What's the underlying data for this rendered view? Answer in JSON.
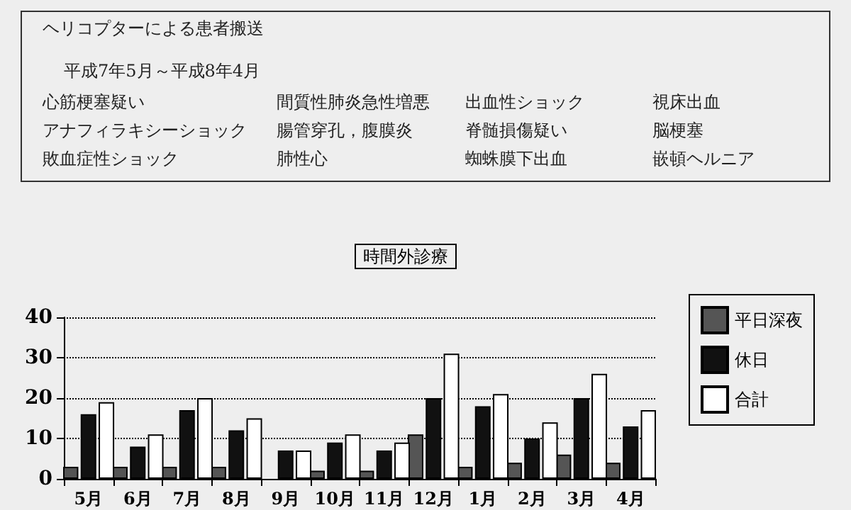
{
  "chart_data": {
    "type": "bar",
    "title": "時間外診療",
    "annotations": [
      "ヘリコプターによる患者搬送",
      "平成7年5月～平成8年4月",
      "心筋梗塞疑い",
      "間質性肺炎急性増悪",
      "出血性ショック",
      "視床出血",
      "アナフィラキシーショック",
      "腸管穿孔，腹膜炎",
      "脊髄損傷疑い",
      "脳梗塞",
      "敗血症性ショック",
      "肺性心",
      "蜘蛛膜下出血",
      "嵌頓ヘルニア"
    ],
    "categories": [
      "5月",
      "6月",
      "7月",
      "8月",
      "9月",
      "10月",
      "11月",
      "12月",
      "1月",
      "2月",
      "3月",
      "4月"
    ],
    "series": [
      {
        "name": "平日深夜",
        "color": "#555555",
        "values": [
          3,
          3,
          3,
          3,
          0,
          2,
          2,
          11,
          3,
          4,
          6,
          4
        ]
      },
      {
        "name": "休日",
        "color": "#111111",
        "values": [
          16,
          8,
          17,
          12,
          7,
          9,
          7,
          20,
          18,
          10,
          20,
          13
        ]
      },
      {
        "name": "合計",
        "color": "#ffffff",
        "values": [
          19,
          11,
          20,
          15,
          7,
          11,
          9,
          31,
          21,
          14,
          26,
          17
        ]
      }
    ],
    "ylim": [
      0,
      40
    ],
    "yticks": [
      0,
      10,
      20,
      30,
      40
    ],
    "grid": "y",
    "legend": "right"
  }
}
